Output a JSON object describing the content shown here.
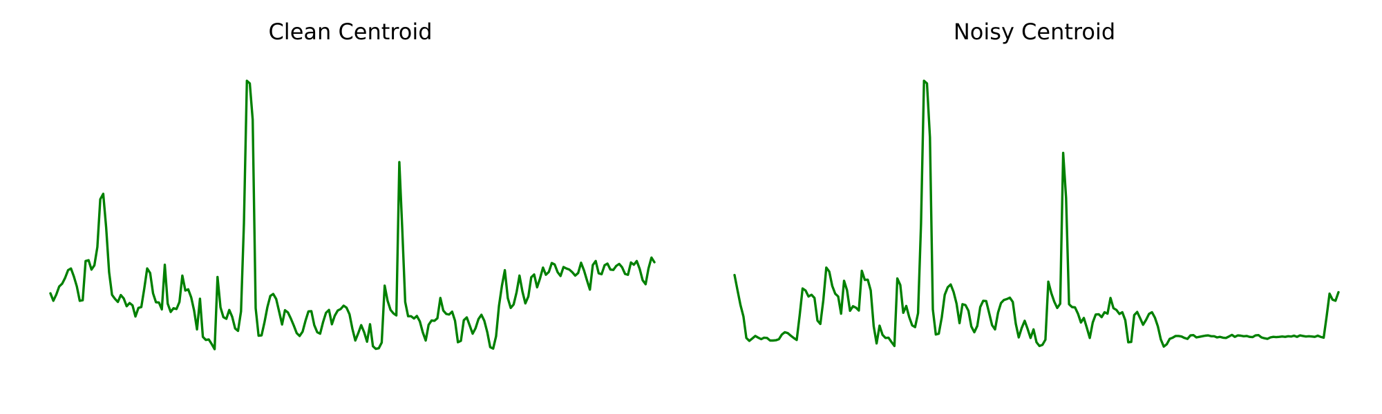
{
  "chart_data": [
    {
      "type": "line",
      "title": "Clean Centroid",
      "xlabel": "",
      "ylabel": "",
      "axes_visible": false,
      "grid": false,
      "xlim": [
        0,
        169
      ],
      "ylim": [
        -0.05,
        1.05
      ],
      "color": "#008000",
      "series": [
        {
          "values": [
            0.256,
            0.23,
            0.252,
            0.28,
            0.29,
            0.31,
            0.337,
            0.343,
            0.315,
            0.28,
            0.23,
            0.232,
            0.369,
            0.372,
            0.339,
            0.354,
            0.418,
            0.585,
            0.604,
            0.487,
            0.33,
            0.251,
            0.237,
            0.226,
            0.25,
            0.238,
            0.211,
            0.222,
            0.214,
            0.175,
            0.205,
            0.208,
            0.273,
            0.343,
            0.327,
            0.256,
            0.225,
            0.224,
            0.2,
            0.356,
            0.22,
            0.191,
            0.204,
            0.201,
            0.226,
            0.318,
            0.266,
            0.27,
            0.242,
            0.196,
            0.13,
            0.237,
            0.104,
            0.093,
            0.095,
            0.079,
            0.061,
            0.313,
            0.207,
            0.173,
            0.167,
            0.198,
            0.174,
            0.133,
            0.125,
            0.193,
            0.5,
            0.999,
            0.99,
            0.863,
            0.204,
            0.108,
            0.109,
            0.154,
            0.208,
            0.247,
            0.254,
            0.236,
            0.193,
            0.147,
            0.197,
            0.189,
            0.168,
            0.144,
            0.117,
            0.107,
            0.122,
            0.16,
            0.193,
            0.194,
            0.145,
            0.12,
            0.115,
            0.156,
            0.188,
            0.198,
            0.148,
            0.178,
            0.196,
            0.201,
            0.213,
            0.206,
            0.183,
            0.132,
            0.091,
            0.117,
            0.145,
            0.12,
            0.087,
            0.148,
            0.071,
            0.062,
            0.064,
            0.084,
            0.283,
            0.23,
            0.198,
            0.186,
            0.179,
            0.715,
            0.483,
            0.226,
            0.176,
            0.176,
            0.168,
            0.177,
            0.158,
            0.12,
            0.091,
            0.146,
            0.161,
            0.16,
            0.169,
            0.24,
            0.196,
            0.184,
            0.182,
            0.192,
            0.16,
            0.085,
            0.09,
            0.162,
            0.172,
            0.144,
            0.115,
            0.134,
            0.166,
            0.181,
            0.16,
            0.12,
            0.068,
            0.063,
            0.106,
            0.212,
            0.283,
            0.337,
            0.239,
            0.205,
            0.217,
            0.26,
            0.318,
            0.262,
            0.221,
            0.245,
            0.312,
            0.322,
            0.277,
            0.308,
            0.346,
            0.321,
            0.331,
            0.362,
            0.357,
            0.33,
            0.317,
            0.348,
            0.343,
            0.339,
            0.33,
            0.318,
            0.327,
            0.363,
            0.336,
            0.302,
            0.269,
            0.355,
            0.369,
            0.326,
            0.323,
            0.354,
            0.36,
            0.339,
            0.338,
            0.352,
            0.359,
            0.347,
            0.324,
            0.321,
            0.364,
            0.356,
            0.369,
            0.341,
            0.302,
            0.288,
            0.343,
            0.381,
            0.365
          ]
        }
      ]
    },
    {
      "type": "line",
      "title": "Noisy Centroid",
      "xlabel": "",
      "ylabel": "",
      "axes_visible": false,
      "grid": false,
      "xlim": [
        0,
        169
      ],
      "ylim": [
        -0.05,
        1.05
      ],
      "color": "#008000",
      "series": [
        {
          "values": [
            0.32,
            0.267,
            0.215,
            0.175,
            0.1,
            0.09,
            0.098,
            0.107,
            0.101,
            0.096,
            0.101,
            0.1,
            0.091,
            0.091,
            0.092,
            0.096,
            0.112,
            0.12,
            0.117,
            0.108,
            0.1,
            0.093,
            0.18,
            0.273,
            0.266,
            0.245,
            0.251,
            0.24,
            0.161,
            0.149,
            0.232,
            0.346,
            0.332,
            0.282,
            0.255,
            0.245,
            0.185,
            0.3,
            0.267,
            0.195,
            0.211,
            0.206,
            0.196,
            0.335,
            0.303,
            0.304,
            0.266,
            0.141,
            0.081,
            0.143,
            0.111,
            0.1,
            0.101,
            0.086,
            0.072,
            0.308,
            0.285,
            0.188,
            0.212,
            0.173,
            0.144,
            0.138,
            0.187,
            0.5,
            0.999,
            0.99,
            0.801,
            0.2,
            0.112,
            0.115,
            0.172,
            0.251,
            0.277,
            0.287,
            0.261,
            0.22,
            0.152,
            0.218,
            0.215,
            0.195,
            0.14,
            0.12,
            0.142,
            0.208,
            0.23,
            0.229,
            0.187,
            0.145,
            0.13,
            0.188,
            0.222,
            0.233,
            0.236,
            0.241,
            0.226,
            0.15,
            0.102,
            0.135,
            0.16,
            0.132,
            0.1,
            0.13,
            0.085,
            0.072,
            0.076,
            0.094,
            0.297,
            0.257,
            0.227,
            0.205,
            0.22,
            0.747,
            0.59,
            0.218,
            0.208,
            0.207,
            0.185,
            0.154,
            0.17,
            0.136,
            0.1,
            0.154,
            0.182,
            0.183,
            0.173,
            0.19,
            0.185,
            0.24,
            0.204,
            0.198,
            0.184,
            0.19,
            0.162,
            0.085,
            0.086,
            0.18,
            0.191,
            0.169,
            0.146,
            0.163,
            0.184,
            0.19,
            0.171,
            0.14,
            0.095,
            0.07,
            0.078,
            0.097,
            0.101,
            0.107,
            0.107,
            0.105,
            0.1,
            0.097,
            0.109,
            0.11,
            0.102,
            0.104,
            0.106,
            0.108,
            0.109,
            0.106,
            0.106,
            0.102,
            0.104,
            0.101,
            0.1,
            0.105,
            0.111,
            0.104,
            0.109,
            0.108,
            0.106,
            0.107,
            0.104,
            0.103,
            0.109,
            0.11,
            0.102,
            0.099,
            0.097,
            0.102,
            0.104,
            0.103,
            0.104,
            0.105,
            0.104,
            0.106,
            0.105,
            0.108,
            0.104,
            0.109,
            0.107,
            0.105,
            0.106,
            0.105,
            0.104,
            0.108,
            0.104,
            0.101,
            0.176,
            0.255,
            0.234,
            0.23,
            0.26
          ]
        }
      ]
    }
  ]
}
